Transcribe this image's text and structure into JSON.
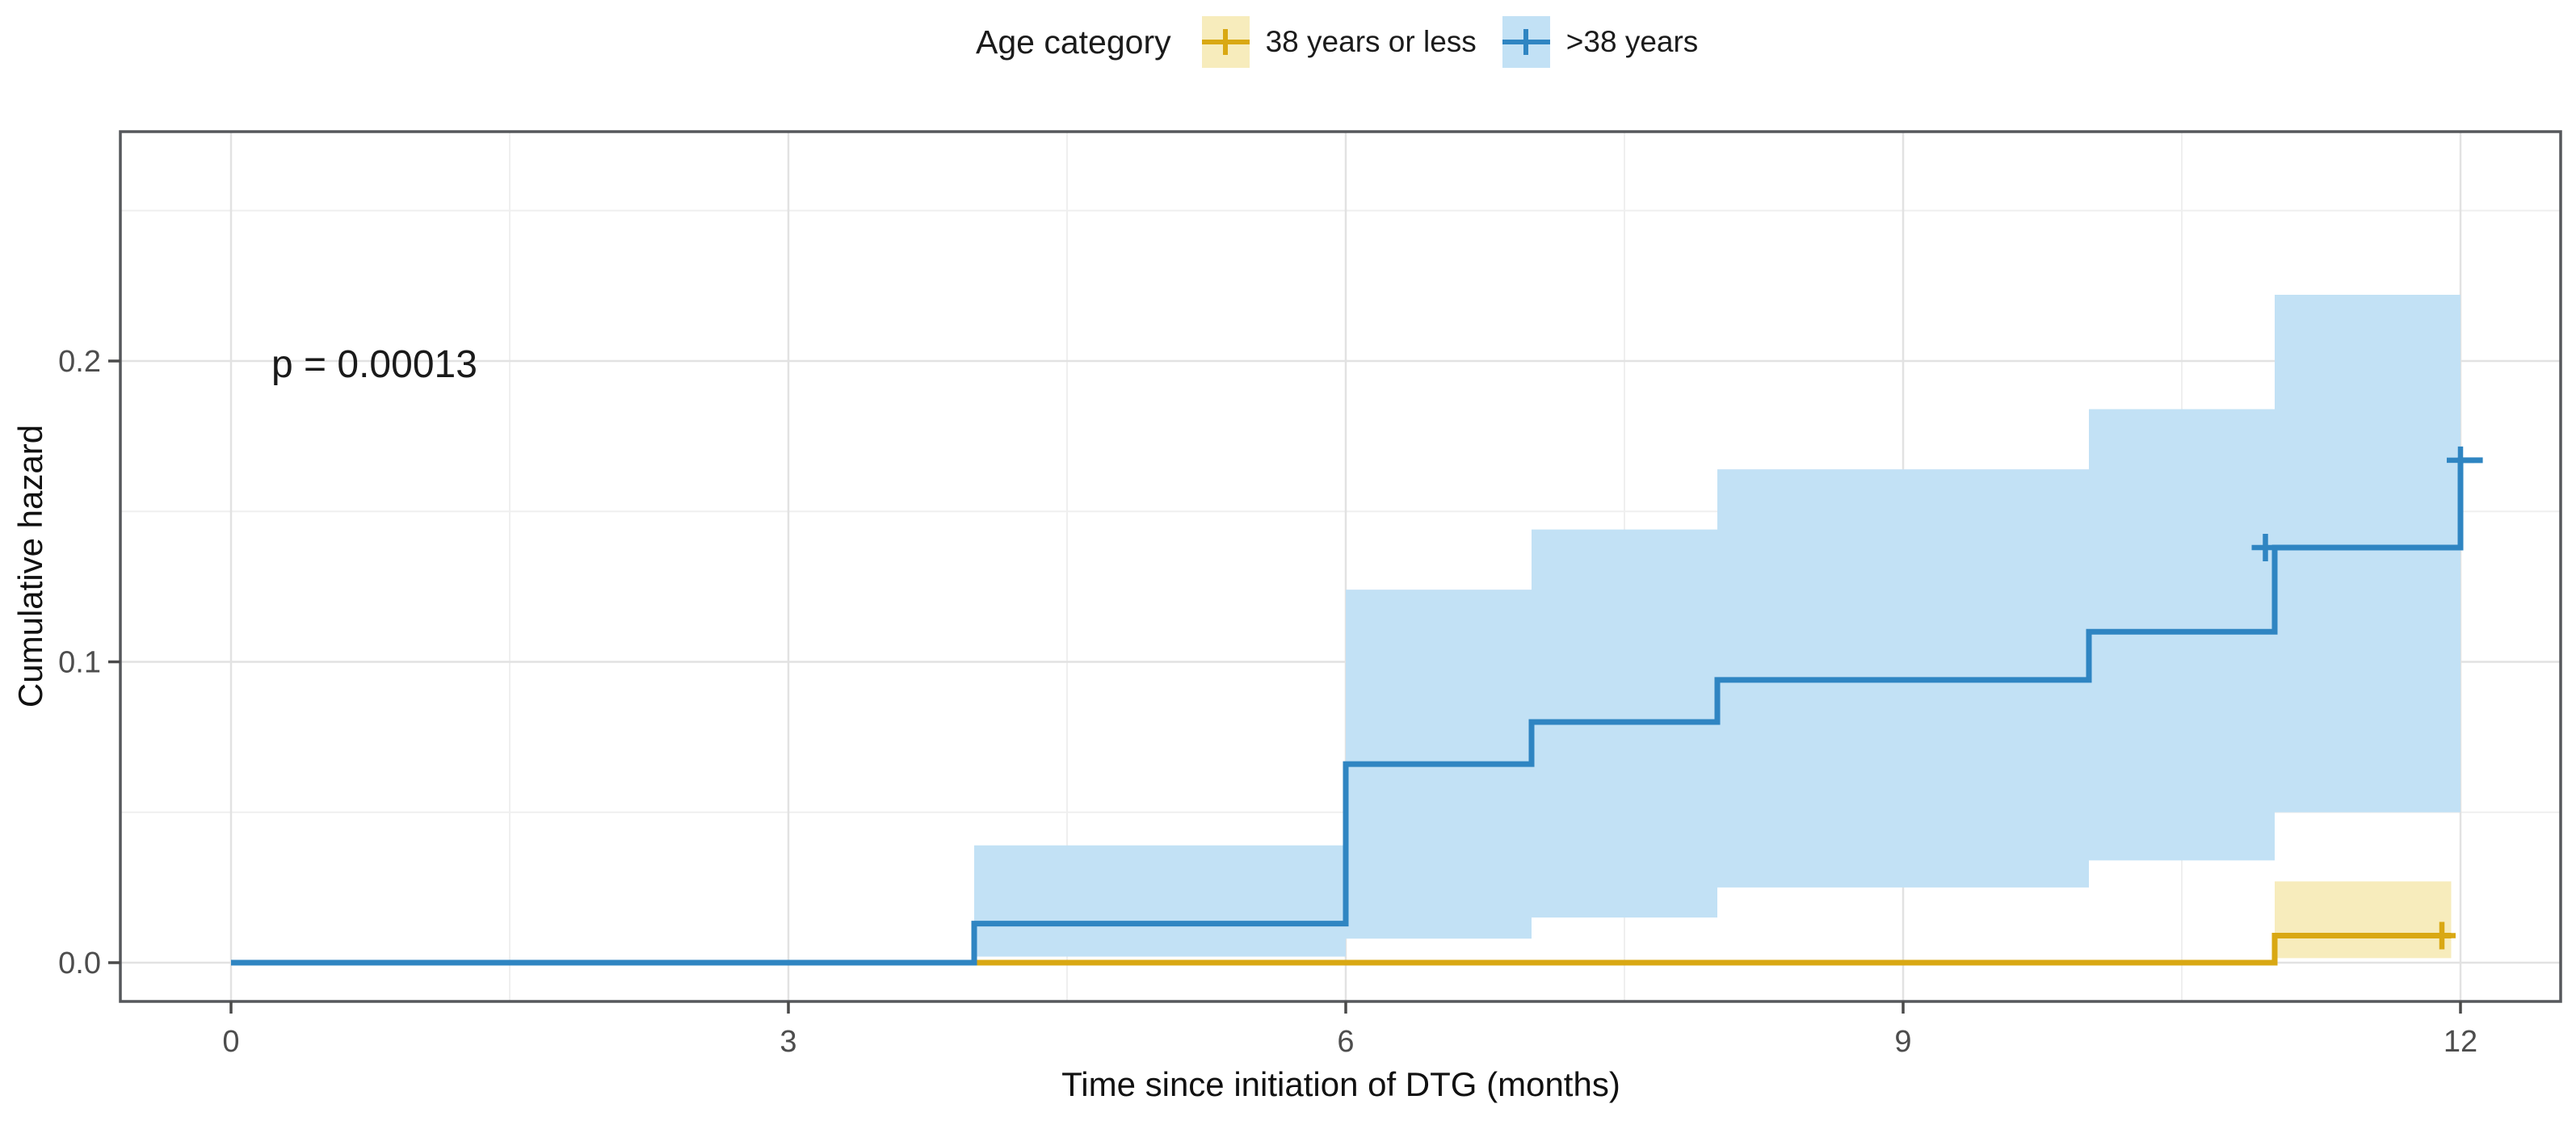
{
  "legend": {
    "title": "Age category"
  },
  "annotation": {
    "p_value": "p = 0.00013"
  },
  "chart_data": {
    "type": "line",
    "subtype": "step-cumulative-hazard",
    "title": "",
    "xlabel": "Time since initiation of DTG (months)",
    "ylabel": "Cumulative hazard",
    "x_ticks": [
      0,
      3,
      6,
      9,
      12
    ],
    "x_tick_labels": [
      "0",
      "3",
      "6",
      "9",
      "12"
    ],
    "x_minor": [
      1.5,
      4.5,
      7.5,
      10.5
    ],
    "y_ticks": [
      0.0,
      0.1,
      0.2
    ],
    "y_tick_labels": [
      "0.0",
      "0.1",
      "0.2"
    ],
    "y_minor": [
      0.05,
      0.15,
      0.25
    ],
    "xlim": [
      -0.6,
      12.55
    ],
    "ylim": [
      -0.013,
      0.276
    ],
    "grid": true,
    "legend_position": "top",
    "series": [
      {
        "name": "38 years or less",
        "color": "#D9A813",
        "band_color": "#F7ECBC",
        "steps": [
          {
            "t": 0,
            "h": 0
          },
          {
            "t": 11,
            "h": 0.009
          },
          {
            "t": 11.95,
            "h": 0.009
          }
        ],
        "band": [
          {
            "t": 11,
            "lo": 0.0015,
            "hi": 0.027
          },
          {
            "t": 11.95,
            "lo": 0.0015,
            "hi": 0.027
          }
        ],
        "censors": [
          {
            "t": 11.9,
            "h": 0.009
          }
        ]
      },
      {
        "name": ">38 years",
        "color": "#2F85C2",
        "band_color": "#C2E1F5",
        "steps": [
          {
            "t": 0,
            "h": 0
          },
          {
            "t": 4,
            "h": 0.013
          },
          {
            "t": 6,
            "h": 0.066
          },
          {
            "t": 7,
            "h": 0.08
          },
          {
            "t": 8,
            "h": 0.094
          },
          {
            "t": 10,
            "h": 0.11
          },
          {
            "t": 11,
            "h": 0.138
          },
          {
            "t": 12,
            "h": 0.167
          },
          {
            "t": 12.12,
            "h": 0.167
          }
        ],
        "band": [
          {
            "t": 4,
            "lo": 0.002,
            "hi": 0.039
          },
          {
            "t": 6,
            "lo": 0.008,
            "hi": 0.124
          },
          {
            "t": 7,
            "lo": 0.015,
            "hi": 0.144
          },
          {
            "t": 8,
            "lo": 0.025,
            "hi": 0.164
          },
          {
            "t": 10,
            "lo": 0.034,
            "hi": 0.184
          },
          {
            "t": 11,
            "lo": 0.05,
            "hi": 0.222
          },
          {
            "t": 12,
            "lo": 0.05,
            "hi": 0.222
          }
        ],
        "censors": [
          {
            "t": 10.95,
            "h": 0.138
          },
          {
            "t": 12.0,
            "h": 0.167
          }
        ]
      }
    ],
    "colors": {
      "panel_border": "#56585c",
      "grid_major": "#e2e2e2",
      "grid_minor": "#efefef",
      "tick_mark": "#4a4a4a",
      "tick_label": "#4d4d4d"
    }
  }
}
